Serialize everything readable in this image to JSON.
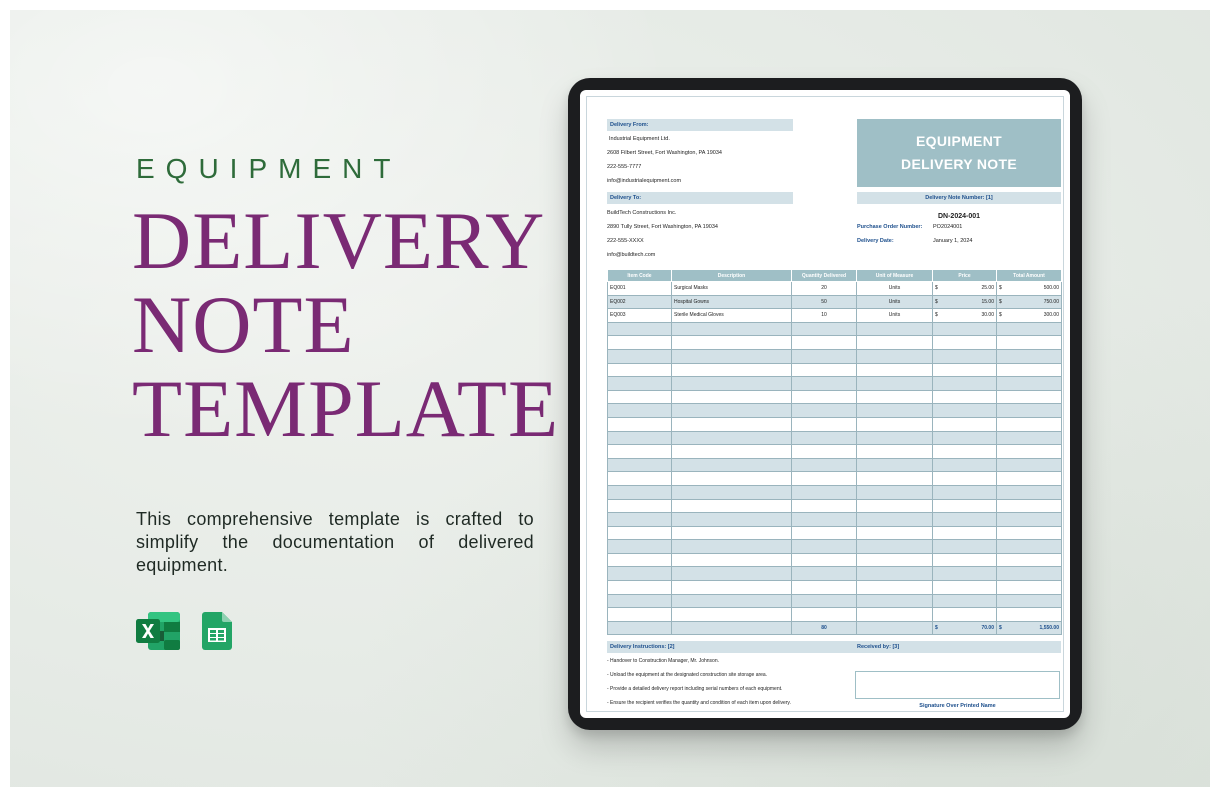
{
  "hero": {
    "kicker": "EQUIPMENT",
    "title_line1": "DELIVERY",
    "title_line2": "NOTE",
    "title_line3": "TEMPLATE",
    "description": "This comprehensive template is crafted to simplify the documentation of delivered equipment.",
    "app_icons": [
      "excel-icon",
      "google-sheets-icon"
    ],
    "colors": {
      "kicker": "#2e6b3a",
      "title": "#7a2a74"
    }
  },
  "document": {
    "title_line1": "EQUIPMENT",
    "title_line2": "DELIVERY NOTE",
    "from": {
      "label": "Delivery From:",
      "lines": [
        "Industrial Equipment Ltd.",
        "2608 Filbert Street, Fort Washington, PA 19034",
        "222-555-7777",
        "info@industrialequipment.com"
      ]
    },
    "to": {
      "label": "Delivery To:",
      "lines": [
        "BuildTech Constructions Inc.",
        "2890 Tully Street, Fort Washington, PA 19034",
        "222-555-XXXX",
        "info@buildtech.com"
      ]
    },
    "note_number_label": "Delivery Note Number: [1]",
    "note_number": "DN-2024-001",
    "po_label": "Purchase Order Number:",
    "po_value": "PO2024001",
    "date_label": "Delivery Date:",
    "date_value": "January 1, 2024",
    "table": {
      "headers": [
        "Item Code",
        "Description",
        "Quantity Delivered",
        "Unit of Measure",
        "Price",
        "Total Amount"
      ],
      "rows": [
        [
          "EQ001",
          "Surgical Masks",
          "20",
          "Units",
          "25.00",
          "500.00"
        ],
        [
          "EQ002",
          "Hospital Gowns",
          "50",
          "Units",
          "15.00",
          "750.00"
        ],
        [
          "EQ003",
          "Sterile Medical Gloves",
          "10",
          "Units",
          "30.00",
          "300.00"
        ]
      ],
      "currency": "$",
      "blank_rows": 22,
      "total_quantity": "80",
      "total_price": "70.00",
      "total_amount": "1,550.00"
    },
    "instructions_label": "Delivery Instructions: [2]",
    "received_label": "Received by: [3]",
    "instructions": [
      "- Handover to Construction Manager, Mr. Johnson.",
      "- Unload the equipment at the designated construction site storage area.",
      "- Provide a detailed delivery report including serial numbers of each equipment.",
      "- Ensure the recipient verifies the quantity and condition of each item upon delivery."
    ],
    "signature_label": "Signature Over Printed Name",
    "colors": {
      "header_fill": "#9fbfc6",
      "band_fill": "#d3e1e7",
      "label_text": "#1d4f8c"
    }
  }
}
